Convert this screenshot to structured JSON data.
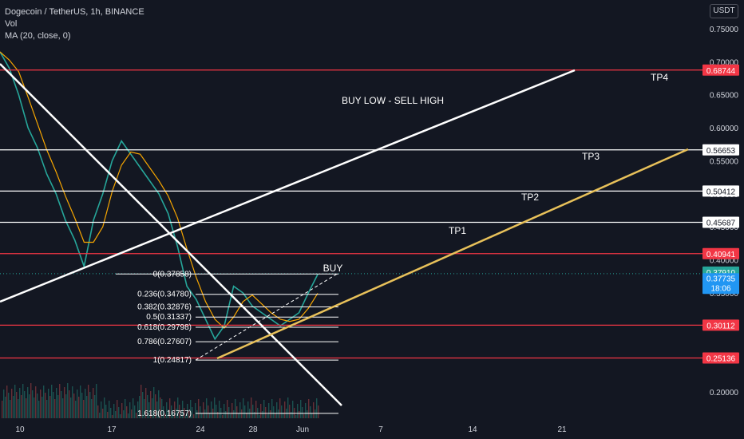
{
  "header": {
    "symbol": "Dogecoin / TetherUS, 1h, BINANCE",
    "volume_label": "Vol",
    "ma_label": "MA (20, close, 0)",
    "currency": "USDT"
  },
  "chart_data": {
    "type": "line",
    "title": "Dogecoin / TetherUS, 1h, BINANCE",
    "xlabel": "",
    "ylabel": "",
    "ylim": [
      0.165,
      0.775
    ],
    "grid": false,
    "y_ticks": [
      "0.75000",
      "0.70000",
      "0.65000",
      "0.60000",
      "0.55000",
      "0.50000",
      "0.45000",
      "0.40000",
      "0.35000",
      "0.30000",
      "0.25000",
      "0.20000"
    ],
    "x_ticks": [
      "10",
      "17",
      "24",
      "28",
      "Jun",
      "7",
      "14",
      "21"
    ],
    "series": [
      {
        "values": [
          0.715,
          0.69,
          0.65,
          0.6,
          0.57,
          0.53,
          0.5,
          0.46,
          0.43,
          0.39,
          0.46,
          0.5,
          0.55,
          0.58,
          0.56,
          0.54,
          0.52,
          0.5,
          0.47,
          0.42,
          0.36,
          0.34,
          0.31,
          0.28,
          0.3,
          0.36,
          0.35,
          0.33,
          0.32,
          0.31,
          0.3,
          0.31,
          0.32,
          0.35,
          0.378
        ]
      }
    ],
    "horizontal_levels": [
      {
        "value": 0.68744,
        "label": "0.68744",
        "color": "#f23645"
      },
      {
        "value": 0.56653,
        "label": "0.56653",
        "color": "#ffffff"
      },
      {
        "value": 0.50412,
        "label": "0.50412",
        "color": "#ffffff"
      },
      {
        "value": 0.45687,
        "label": "0.45687",
        "color": "#ffffff"
      },
      {
        "value": 0.40941,
        "label": "0.40941",
        "color": "#f23645"
      },
      {
        "value": 0.30112,
        "label": "0.30112",
        "color": "#f23645"
      },
      {
        "value": 0.25136,
        "label": "0.25136",
        "color": "#f23645"
      }
    ],
    "price_tags": [
      {
        "value": 0.3791,
        "label": "0.37910",
        "color": "#26a69a"
      },
      {
        "value": 0.37735,
        "label": "0.37735",
        "color": "#2196f3"
      }
    ],
    "countdown": "18:06",
    "fib_levels": [
      {
        "label": "0(0.37858)",
        "value": 0.37858
      },
      {
        "label": "0.236(0.34780)",
        "value": 0.3478
      },
      {
        "label": "0.382(0.32876)",
        "value": 0.32876
      },
      {
        "label": "0.5(0.31337)",
        "value": 0.31337
      },
      {
        "label": "0.618(0.29798)",
        "value": 0.29798
      },
      {
        "label": "0.786(0.27607)",
        "value": 0.27607
      },
      {
        "label": "1(0.24817)",
        "value": 0.24817
      },
      {
        "label": "1.618(0.16757)",
        "value": 0.16757
      }
    ],
    "annotations": [
      "BUY LOW - SELL HIGH",
      "TP4",
      "TP3",
      "TP2",
      "TP1",
      "BUY"
    ]
  },
  "colors": {
    "background": "#131722",
    "support": "#f23645",
    "target": "#ffffff",
    "channel": "#e8c15a",
    "ma": "#f7a600",
    "price": "#26a69a",
    "last": "#2196f3"
  }
}
